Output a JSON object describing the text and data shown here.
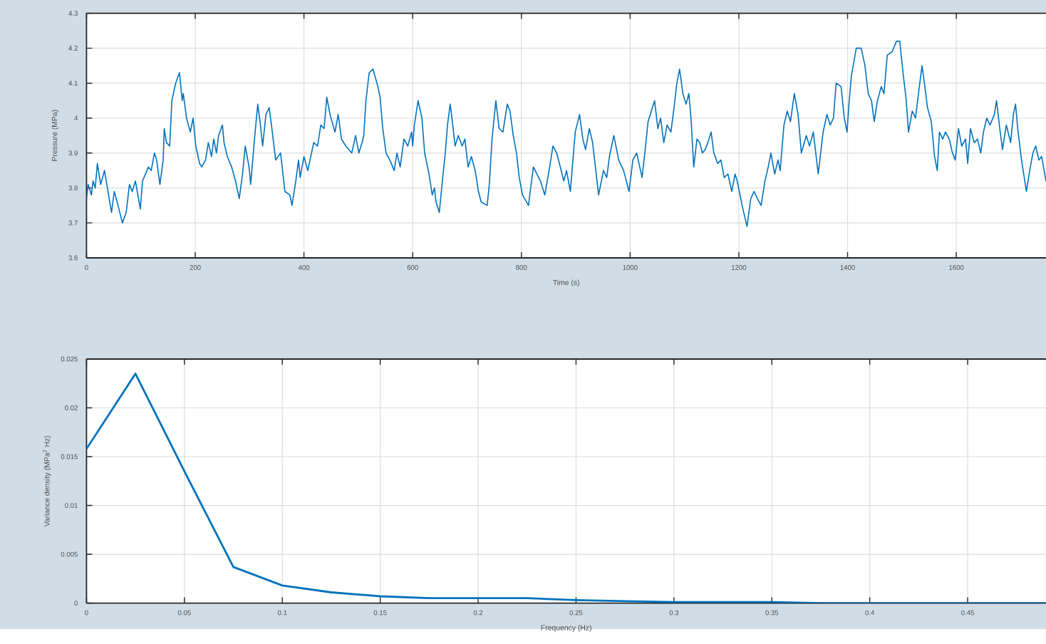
{
  "chart_data": [
    {
      "type": "line",
      "xlabel": "Time (s)",
      "ylabel": "Pressure (MPa)",
      "color": "#0072bd",
      "x": [
        0,
        3,
        9,
        12,
        16,
        20,
        26,
        33,
        46,
        51,
        58,
        66,
        73,
        79,
        84,
        90,
        99,
        103,
        114,
        119,
        125,
        129,
        135,
        141,
        143,
        147,
        153,
        157,
        164,
        171,
        176,
        178,
        184,
        191,
        196,
        201,
        208,
        212,
        219,
        224,
        230,
        234,
        239,
        243,
        250,
        253,
        259,
        267,
        274,
        281,
        287,
        292,
        299,
        302,
        309,
        315,
        320,
        324,
        330,
        336,
        341,
        348,
        357,
        365,
        374,
        378,
        385,
        390,
        393,
        400,
        407,
        418,
        425,
        431,
        437,
        442,
        448,
        457,
        463,
        469,
        477,
        488,
        495,
        501,
        507,
        510,
        514,
        520,
        527,
        536,
        540,
        545,
        551,
        558,
        566,
        571,
        577,
        584,
        591,
        598,
        600,
        603,
        610,
        617,
        622,
        630,
        636,
        640,
        643,
        649,
        654,
        660,
        664,
        669,
        673,
        678,
        684,
        691,
        696,
        702,
        708,
        715,
        721,
        726,
        737,
        741,
        746,
        753,
        759,
        766,
        774,
        779,
        785,
        791,
        796,
        802,
        813,
        822,
        835,
        843,
        852,
        858,
        865,
        878,
        883,
        890,
        899,
        907,
        913,
        918,
        925,
        931,
        942,
        951,
        957,
        962,
        970,
        979,
        988,
        998,
        1005,
        1012,
        1022,
        1027,
        1033,
        1045,
        1051,
        1056,
        1062,
        1068,
        1075,
        1080,
        1086,
        1091,
        1097,
        1103,
        1108,
        1112,
        1117,
        1123,
        1128,
        1133,
        1138,
        1143,
        1149,
        1154,
        1161,
        1167,
        1173,
        1180,
        1187,
        1193,
        1197,
        1206,
        1215,
        1222,
        1228,
        1234,
        1241,
        1248,
        1254,
        1259,
        1266,
        1272,
        1276,
        1283,
        1289,
        1295,
        1302,
        1309,
        1315,
        1324,
        1330,
        1337,
        1346,
        1355,
        1362,
        1368,
        1374,
        1379,
        1388,
        1394,
        1399,
        1403,
        1407,
        1416,
        1425,
        1432,
        1438,
        1444,
        1449,
        1455,
        1462,
        1467,
        1473,
        1482,
        1490,
        1496,
        1502,
        1508,
        1512,
        1519,
        1525,
        1532,
        1537,
        1543,
        1547,
        1554,
        1560,
        1565,
        1569,
        1575,
        1580,
        1587,
        1593,
        1598,
        1604,
        1610,
        1617,
        1621,
        1626,
        1633,
        1639,
        1645,
        1650,
        1656,
        1662,
        1670,
        1674,
        1680,
        1685,
        1692,
        1700,
        1705,
        1709,
        1713,
        1720,
        1729,
        1735,
        1741,
        1746,
        1752,
        1757,
        1765
      ],
      "values": [
        3.77,
        3.81,
        3.78,
        3.82,
        3.8,
        3.87,
        3.81,
        3.85,
        3.73,
        3.79,
        3.75,
        3.7,
        3.73,
        3.81,
        3.79,
        3.82,
        3.74,
        3.82,
        3.86,
        3.85,
        3.9,
        3.88,
        3.81,
        3.88,
        3.97,
        3.93,
        3.92,
        4.05,
        4.1,
        4.13,
        4.05,
        4.07,
        4.0,
        3.96,
        4.0,
        3.92,
        3.87,
        3.86,
        3.88,
        3.93,
        3.89,
        3.94,
        3.9,
        3.95,
        3.98,
        3.93,
        3.89,
        3.86,
        3.82,
        3.77,
        3.84,
        3.92,
        3.86,
        3.81,
        3.94,
        4.04,
        3.98,
        3.92,
        4.01,
        4.03,
        3.97,
        3.88,
        3.9,
        3.79,
        3.78,
        3.75,
        3.82,
        3.88,
        3.83,
        3.89,
        3.85,
        3.93,
        3.92,
        3.98,
        3.97,
        4.06,
        4.01,
        3.96,
        4.01,
        3.94,
        3.92,
        3.9,
        3.95,
        3.9,
        3.93,
        3.95,
        4.05,
        4.13,
        4.14,
        4.09,
        4.06,
        3.97,
        3.9,
        3.88,
        3.85,
        3.9,
        3.86,
        3.94,
        3.92,
        3.96,
        3.92,
        3.98,
        4.05,
        4.0,
        3.9,
        3.84,
        3.78,
        3.8,
        3.76,
        3.73,
        3.81,
        3.9,
        3.98,
        4.04,
        3.99,
        3.92,
        3.95,
        3.92,
        3.94,
        3.86,
        3.89,
        3.85,
        3.79,
        3.76,
        3.75,
        3.81,
        3.94,
        4.05,
        3.97,
        3.96,
        4.04,
        4.02,
        3.95,
        3.9,
        3.83,
        3.78,
        3.75,
        3.86,
        3.82,
        3.78,
        3.86,
        3.92,
        3.9,
        3.82,
        3.85,
        3.79,
        3.96,
        4.01,
        3.94,
        3.91,
        3.97,
        3.93,
        3.78,
        3.85,
        3.83,
        3.89,
        3.95,
        3.88,
        3.85,
        3.79,
        3.88,
        3.9,
        3.83,
        3.9,
        3.99,
        4.05,
        3.97,
        4.0,
        3.93,
        3.98,
        3.96,
        4.02,
        4.1,
        4.14,
        4.07,
        4.04,
        4.07,
        4.0,
        3.86,
        3.94,
        3.93,
        3.9,
        3.91,
        3.93,
        3.96,
        3.9,
        3.87,
        3.88,
        3.83,
        3.84,
        3.79,
        3.84,
        3.82,
        3.75,
        3.69,
        3.77,
        3.79,
        3.77,
        3.75,
        3.82,
        3.86,
        3.9,
        3.84,
        3.88,
        3.85,
        3.98,
        4.02,
        3.99,
        4.07,
        4.01,
        3.9,
        3.95,
        3.92,
        3.96,
        3.84,
        3.96,
        4.01,
        3.98,
        4.0,
        4.1,
        4.09,
        4.0,
        3.96,
        4.05,
        4.12,
        4.2,
        4.2,
        4.15,
        4.07,
        4.05,
        3.99,
        4.05,
        4.09,
        4.07,
        4.18,
        4.19,
        4.22,
        4.22,
        4.13,
        4.05,
        3.96,
        4.02,
        4.0,
        4.09,
        4.15,
        4.08,
        4.03,
        3.99,
        3.89,
        3.85,
        3.96,
        3.94,
        3.96,
        3.94,
        3.9,
        3.88,
        3.97,
        3.92,
        3.94,
        3.87,
        3.97,
        3.93,
        3.94,
        3.9,
        3.96,
        4.0,
        3.98,
        4.01,
        4.05,
        3.97,
        3.91,
        3.98,
        3.93,
        4.01,
        4.04,
        3.97,
        3.88,
        3.79,
        3.85,
        3.9,
        3.92,
        3.88,
        3.89,
        3.82
      ],
      "xlim": [
        0,
        1765
      ],
      "ylim": [
        3.6,
        4.3
      ],
      "xticks": [
        0,
        200,
        400,
        600,
        800,
        1000,
        1200,
        1400,
        1600
      ],
      "yticks": [
        3.6,
        3.7,
        3.8,
        3.9,
        4,
        4.1,
        4.2,
        4.3
      ],
      "grid": true
    },
    {
      "type": "line",
      "xlabel": "Frequency (Hz)",
      "ylabel": "Variance density (MPa$^{2}$ Hz)",
      "color": "#0072bd",
      "x": [
        0,
        0.025,
        0.05,
        0.075,
        0.1,
        0.125,
        0.15,
        0.175,
        0.2,
        0.225,
        0.25,
        0.275,
        0.3,
        0.325,
        0.35,
        0.375,
        0.4,
        0.425,
        0.45,
        0.475,
        0.49
      ],
      "values": [
        0.0158,
        0.0235,
        0.0135,
        0.0037,
        0.0018,
        0.0011,
        0.0007,
        0.0005,
        0.0005,
        0.0005,
        0.0003,
        0.0002,
        0.0001,
        0.0001,
        0.0001,
        0,
        0,
        0,
        0,
        0,
        0
      ],
      "xlim": [
        0,
        0.49
      ],
      "ylim": [
        0,
        0.025
      ],
      "xticks": [
        0,
        0.05,
        0.1,
        0.15,
        0.2,
        0.25,
        0.3,
        0.35,
        0.4,
        0.45
      ],
      "yticks": [
        0,
        0.005,
        0.01,
        0.015,
        0.02,
        0.025
      ],
      "grid": true
    }
  ]
}
